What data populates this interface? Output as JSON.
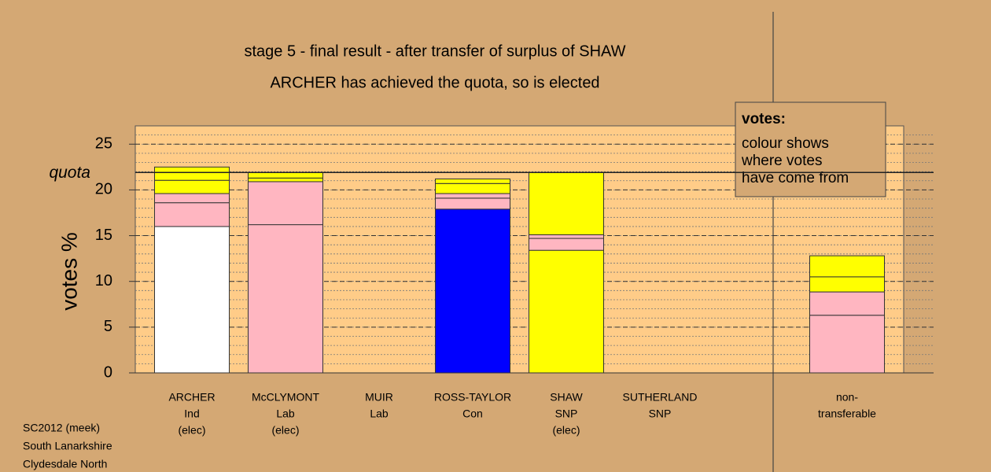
{
  "chart_data": {
    "type": "stacked-bar",
    "title": "stage 5 - final result - after transfer of surplus of SHAW",
    "subtitle": "ARCHER has achieved the quota, so is elected",
    "y_label": "votes %",
    "ylim": [
      0,
      27
    ],
    "yticks": [
      0,
      5,
      10,
      15,
      20,
      25
    ],
    "minor_grid_step": 1,
    "grid": true,
    "quota": {
      "label": "quota",
      "value": 21.9
    },
    "bars": [
      {
        "label_lines": [
          "ARCHER",
          "Ind",
          "(elec)"
        ],
        "segments": [
          {
            "color": "#ffffff",
            "value": 16.0
          },
          {
            "color": "#ffb6c1",
            "value": 2.6
          },
          {
            "color": "#ffb6c1",
            "value": 1.0
          },
          {
            "color": "#ffff00",
            "value": 1.45
          },
          {
            "color": "#ffff00",
            "value": 1.45
          }
        ]
      },
      {
        "label_lines": [
          "McCLYMONT",
          "Lab",
          "(elec)"
        ],
        "segments": [
          {
            "color": "#ffb6c1",
            "value": 16.2
          },
          {
            "color": "#ffb6c1",
            "value": 4.7
          },
          {
            "color": "#ffff00",
            "value": 0.4
          },
          {
            "color": "#ffff00",
            "value": 0.6
          }
        ]
      },
      {
        "label_lines": [
          "MUIR",
          "Lab"
        ],
        "segments": [
          {
            "color": "#ffb6c1",
            "value": 0
          }
        ]
      },
      {
        "label_lines": [
          "ROSS-TAYLOR",
          "Con"
        ],
        "segments": [
          {
            "color": "#0000ff",
            "value": 17.9
          },
          {
            "color": "#ffb6c1",
            "value": 1.2
          },
          {
            "color": "#ffb6c1",
            "value": 0.5
          },
          {
            "color": "#ffff00",
            "value": 1.1
          },
          {
            "color": "#ffff00",
            "value": 0.5
          }
        ]
      },
      {
        "label_lines": [
          "SHAW",
          "SNP",
          "(elec)"
        ],
        "segments": [
          {
            "color": "#ffff00",
            "value": 13.4
          },
          {
            "color": "#ffb6c1",
            "value": 1.3
          },
          {
            "color": "#ffb6c1",
            "value": 0.4
          },
          {
            "color": "#ffff00",
            "value": 6.8
          }
        ]
      },
      {
        "label_lines": [
          "SUTHERLAND",
          "SNP"
        ],
        "segments": [
          {
            "color": "#ffff00",
            "value": 0
          }
        ]
      },
      {
        "label_lines": [
          "non-",
          "transferable"
        ],
        "segments": [
          {
            "color": "#ffb6c1",
            "value": 6.3
          },
          {
            "color": "#ffb6c1",
            "value": 2.55
          },
          {
            "color": "#ffff00",
            "value": 1.65
          },
          {
            "color": "#ffff00",
            "value": 2.3
          }
        ]
      }
    ],
    "legend": {
      "title": "votes:",
      "lines": [
        "colour shows",
        "where votes",
        "have come from"
      ]
    },
    "footer": [
      "SC2012 (meek)",
      "South Lanarkshire",
      "Clydesdale North"
    ]
  }
}
